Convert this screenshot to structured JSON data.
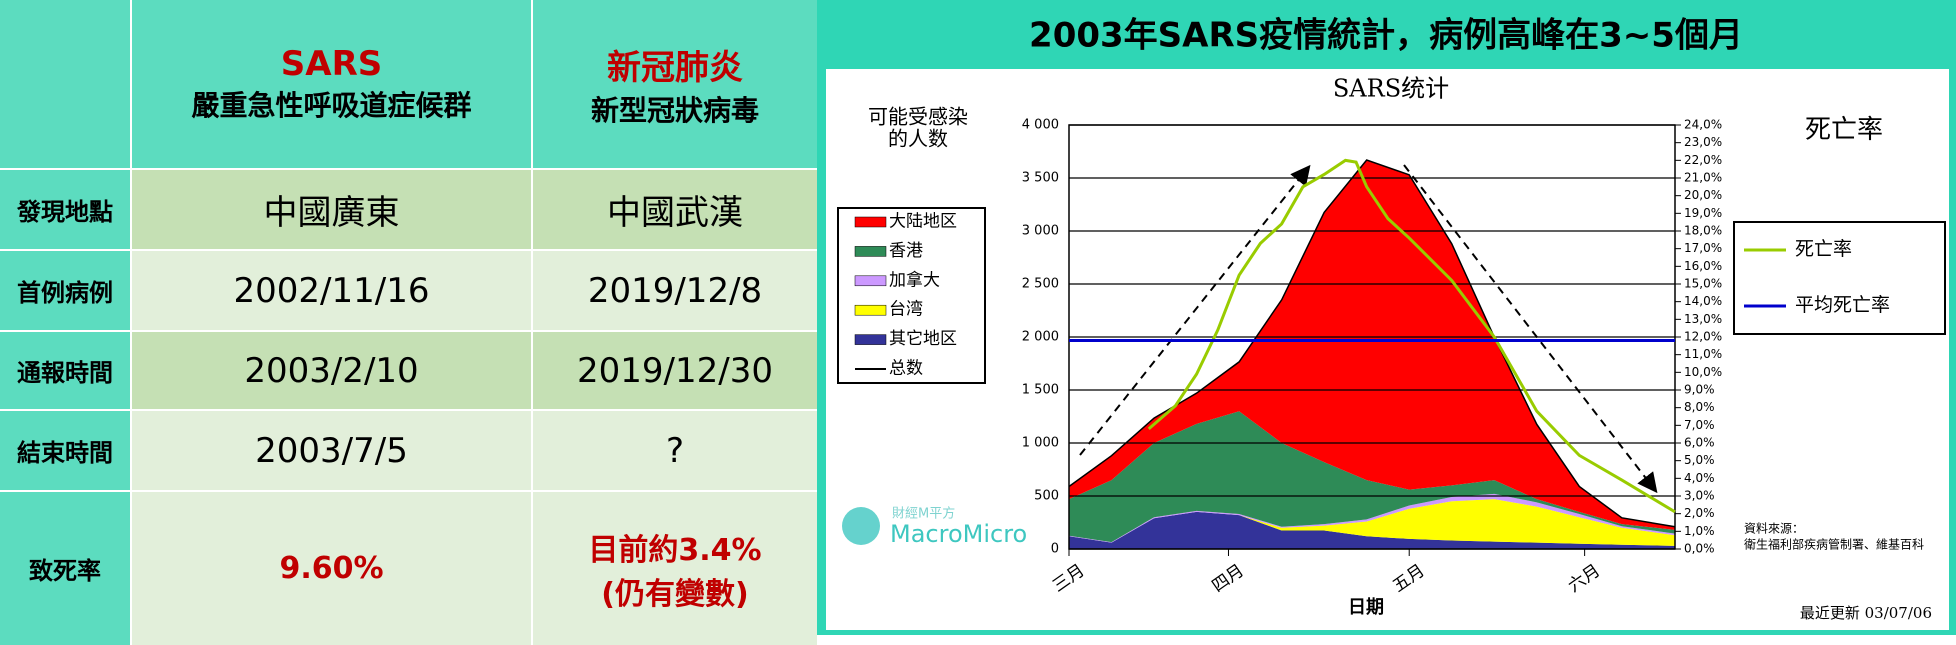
{
  "table": {
    "header": [
      {
        "title": "SARS",
        "subtitle": "嚴重急性呼吸道症候群"
      },
      {
        "title": "新冠肺炎",
        "subtitle": "新型冠狀病毒"
      }
    ],
    "rows": [
      {
        "label": "發現地點",
        "cells": [
          "中國廣東",
          "中國武漢"
        ]
      },
      {
        "label": "首例病例",
        "cells": [
          "2002/11/16",
          "2019/12/8"
        ]
      },
      {
        "label": "通報時間",
        "cells": [
          "2003/2/10",
          "2019/12/30"
        ]
      },
      {
        "label": "結束時間",
        "cells": [
          "2003/7/5",
          "?"
        ]
      },
      {
        "label": "致死率",
        "cells": [
          "9.60%",
          "目前約3.4%"
        ],
        "note": "(仍有變數)"
      }
    ]
  },
  "panel_title": "2003年SARS疫情統計，病例高峰在3~5個月",
  "chart_data": {
    "type": "area",
    "title": "SARS统计",
    "ylabel": [
      "可能受感染",
      "的人数"
    ],
    "y2label": "死亡率",
    "xlabel": "日期",
    "source": [
      "資料來源：",
      "衛生福利部疾病管制署、維基百科"
    ],
    "updated": "最近更新 03/07/06",
    "watermark": [
      "財經M平方",
      "MacroMicro"
    ],
    "x": [
      0,
      8,
      16,
      24,
      32,
      40,
      48,
      56,
      64,
      72,
      80,
      88,
      96,
      104,
      114
    ],
    "xlim": [
      0,
      114
    ],
    "xticks": [
      {
        "value": 0,
        "label": "三月"
      },
      {
        "value": 30,
        "label": "四月"
      },
      {
        "value": 64,
        "label": "五月"
      },
      {
        "value": 97,
        "label": "六月"
      }
    ],
    "ylim": [
      0,
      4000
    ],
    "yticks": [
      {
        "value": 0,
        "label": "0"
      },
      {
        "value": 500,
        "label": "500"
      },
      {
        "value": 1000,
        "label": "1 000"
      },
      {
        "value": 1500,
        "label": "1 500"
      },
      {
        "value": 2000,
        "label": "2 000"
      },
      {
        "value": 2500,
        "label": "2 500"
      },
      {
        "value": 3000,
        "label": "3 000"
      },
      {
        "value": 3500,
        "label": "3 500"
      },
      {
        "value": 4000,
        "label": "4 000"
      }
    ],
    "y2lim": [
      0,
      24
    ],
    "y2ticks": [
      {
        "value": 0,
        "label": "0,0%"
      },
      {
        "value": 1,
        "label": "1,0%"
      },
      {
        "value": 2,
        "label": "2,0%"
      },
      {
        "value": 3,
        "label": "3,0%"
      },
      {
        "value": 4,
        "label": "4,0%"
      },
      {
        "value": 5,
        "label": "5,0%"
      },
      {
        "value": 6,
        "label": "6,0%"
      },
      {
        "value": 7,
        "label": "7,0%"
      },
      {
        "value": 8,
        "label": "8,0%"
      },
      {
        "value": 9,
        "label": "9,0%"
      },
      {
        "value": 10,
        "label": "10,0%"
      },
      {
        "value": 11,
        "label": "11,0%"
      },
      {
        "value": 12,
        "label": "12,0%"
      },
      {
        "value": 13,
        "label": "13,0%"
      },
      {
        "value": 14,
        "label": "14,0%"
      },
      {
        "value": 15,
        "label": "15,0%"
      },
      {
        "value": 16,
        "label": "16,0%"
      },
      {
        "value": 17,
        "label": "17,0%"
      },
      {
        "value": 18,
        "label": "18,0%"
      },
      {
        "value": 19,
        "label": "19,0%"
      },
      {
        "value": 20,
        "label": "20,0%"
      },
      {
        "value": 21,
        "label": "21,0%"
      },
      {
        "value": 22,
        "label": "22,0%"
      },
      {
        "value": 23,
        "label": "23,0%"
      },
      {
        "value": 24,
        "label": "24,0%"
      }
    ],
    "grid": true,
    "series": [
      {
        "name": "大陆地区",
        "color": "#ff0000",
        "values": [
          120,
          230,
          235,
          290,
          465,
          1350,
          2355,
          3020,
          2970,
          2280,
          1350,
          706,
          240,
          59,
          30
        ]
      },
      {
        "name": "香港",
        "color": "#2e8b57",
        "values": [
          345,
          585,
          700,
          820,
          970,
          790,
          585,
          370,
          150,
          110,
          130,
          30,
          20,
          20,
          35
        ]
      },
      {
        "name": "加拿大",
        "color": "#cc99ff",
        "values": [
          5,
          5,
          10,
          10,
          10,
          10,
          15,
          20,
          30,
          40,
          50,
          40,
          30,
          15,
          15
        ]
      },
      {
        "name": "台湾",
        "color": "#ffff00",
        "values": [
          0,
          0,
          0,
          0,
          0,
          25,
          45,
          140,
          285,
          370,
          400,
          340,
          250,
          160,
          100
        ]
      },
      {
        "name": "其它地区",
        "color": "#333399",
        "values": [
          120,
          60,
          290,
          350,
          320,
          175,
          175,
          120,
          95,
          80,
          70,
          60,
          50,
          40,
          30
        ]
      },
      {
        "name": "总数",
        "color": "#000000",
        "type": "line",
        "values": [
          590,
          880,
          1235,
          1470,
          1765,
          2350,
          3175,
          3670,
          3530,
          2880,
          2000,
          1176,
          590,
          294,
          210
        ]
      },
      {
        "name": "死亡率",
        "color": "#99cc00",
        "type": "line",
        "axis": "y2",
        "x": [
          15,
          20,
          24,
          28,
          32,
          36,
          40,
          44,
          48,
          52,
          54,
          56,
          60,
          64,
          72,
          80,
          88,
          96,
          104,
          114
        ],
        "values": [
          6.8,
          8.1,
          9.9,
          12.4,
          15.5,
          17.3,
          18.4,
          20.5,
          21.2,
          22.0,
          21.9,
          20.5,
          18.7,
          17.6,
          15.2,
          12.0,
          7.8,
          5.3,
          3.9,
          2.1
        ]
      },
      {
        "name": "平均死亡率",
        "color": "#0000cc",
        "type": "hline",
        "axis": "y2",
        "value": 11.8
      }
    ]
  }
}
